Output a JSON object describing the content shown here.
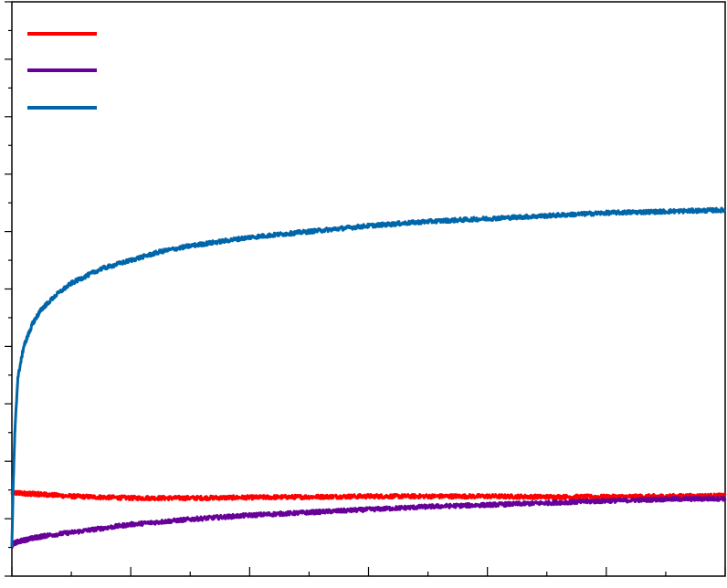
{
  "chart_data": {
    "type": "line",
    "title": "",
    "xlabel": "",
    "ylabel": "",
    "xlim": [
      0,
      12
    ],
    "ylim": [
      0,
      20
    ],
    "x_major_ticks": [
      0,
      2,
      4,
      6,
      8,
      10,
      12
    ],
    "x_minor_ticks": [
      1,
      3,
      5,
      7,
      9,
      11
    ],
    "y_major_ticks": [
      0,
      2,
      4,
      6,
      8,
      10,
      12,
      14,
      16,
      18,
      20
    ],
    "y_minor_ticks": [
      1,
      3,
      5,
      7,
      9,
      11,
      13,
      15,
      17,
      19
    ],
    "grid": false,
    "legend": {
      "placement": "top-left",
      "labels_shown": false
    },
    "series": [
      {
        "color": "#ff0000",
        "noise": 0.07,
        "x": [
          0,
          0.05,
          0.2,
          0.5,
          1,
          2,
          3,
          4,
          5,
          6,
          7,
          8,
          9,
          10,
          11,
          12
        ],
        "y": [
          2.9,
          2.9,
          2.88,
          2.85,
          2.78,
          2.72,
          2.72,
          2.74,
          2.76,
          2.78,
          2.78,
          2.78,
          2.76,
          2.76,
          2.78,
          2.8
        ]
      },
      {
        "color": "#660099",
        "noise": 0.07,
        "x": [
          0,
          0.02,
          0.1,
          0.3,
          0.6,
          1,
          2,
          3,
          4,
          5,
          6,
          7,
          8,
          9,
          10,
          11,
          12
        ],
        "y": [
          1.0,
          1.12,
          1.2,
          1.3,
          1.42,
          1.52,
          1.8,
          1.98,
          2.12,
          2.22,
          2.32,
          2.42,
          2.48,
          2.55,
          2.62,
          2.68,
          2.7
        ]
      },
      {
        "color": "#0066aa",
        "noise": 0.07,
        "x": [
          0,
          0.02,
          0.05,
          0.1,
          0.2,
          0.35,
          0.5,
          0.75,
          1,
          1.5,
          2,
          2.5,
          3,
          3.5,
          4,
          5,
          6,
          7,
          8,
          9,
          10,
          11,
          12
        ],
        "y": [
          1.0,
          3.0,
          5.0,
          6.9,
          8.0,
          8.8,
          9.3,
          9.8,
          10.2,
          10.7,
          11.0,
          11.3,
          11.5,
          11.65,
          11.8,
          12.0,
          12.2,
          12.35,
          12.45,
          12.55,
          12.65,
          12.7,
          12.75
        ]
      }
    ]
  }
}
